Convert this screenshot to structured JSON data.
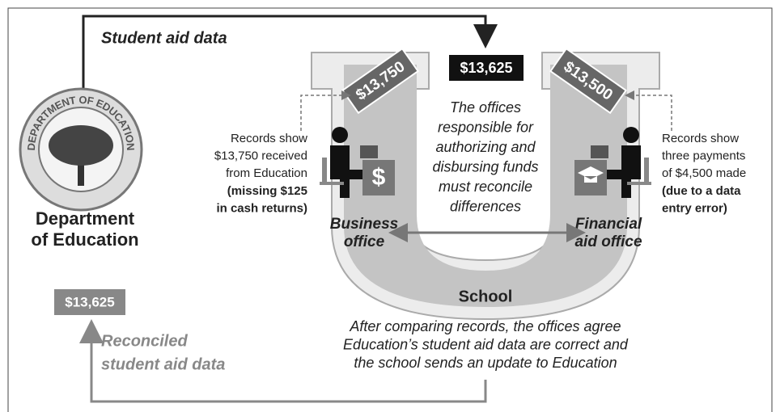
{
  "top_flow": {
    "label": "Student aid data",
    "amount": "$13,625"
  },
  "department": {
    "seal_text": "DEPARTMENT OF EDUCATION",
    "name_lines": [
      "Department",
      "of Education"
    ]
  },
  "business_office": {
    "amount": "$13,750",
    "icon": "$",
    "name_lines": [
      "Business",
      "office"
    ],
    "note_lines": [
      "Records show",
      "$13,750 received",
      "from Education"
    ],
    "note_bold_lines": [
      "(missing $125",
      "in cash returns)"
    ]
  },
  "financial_aid_office": {
    "amount": "$13,500",
    "name_lines": [
      "Financial",
      "aid office"
    ],
    "note_lines": [
      "Records show",
      "three payments",
      "of $4,500 made"
    ],
    "note_bold_lines": [
      "(due to a data",
      "entry error)"
    ]
  },
  "center_note_lines": [
    "The offices",
    "responsible for",
    "authorizing and",
    "disbursing funds",
    "must reconcile",
    "differences"
  ],
  "school": {
    "label": "School",
    "outcome_lines": [
      "After comparing records, the offices agree",
      "Education’s student aid data are correct and",
      "the school sends an update to Education"
    ]
  },
  "return_flow": {
    "amount": "$13,625",
    "label_lines": [
      "Reconciled",
      "student aid data"
    ]
  }
}
